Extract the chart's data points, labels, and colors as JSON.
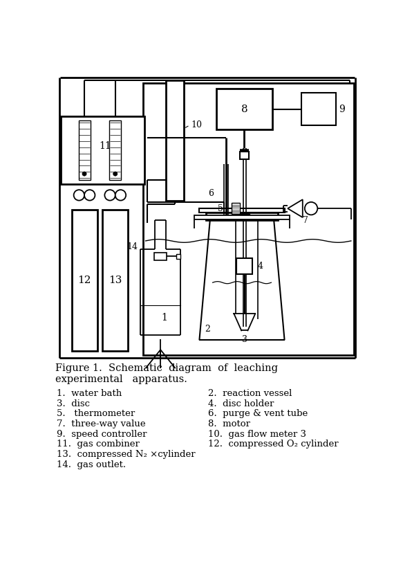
{
  "bg_color": "#ffffff",
  "line_color": "#000000",
  "fig_title_line1": "Figure 1.  Schematic  diagram  of  leaching",
  "fig_title_line2": "experimental   apparatus.",
  "legend_col1": [
    "1.  water bath",
    "3.  disc",
    "5.   thermometer",
    "7.  three-way value",
    "9.  speed controller",
    "11.  gas combiner",
    "13.  compressed N₂ ×cylinder",
    "14.  gas outlet."
  ],
  "legend_col2": [
    "2.  reaction vessel",
    "4.  disc holder",
    "6.  purge & vent tube",
    "8.  motor",
    "10.  gas flow meter 3",
    "12.  compressed O₂ cylinder",
    "",
    ""
  ]
}
